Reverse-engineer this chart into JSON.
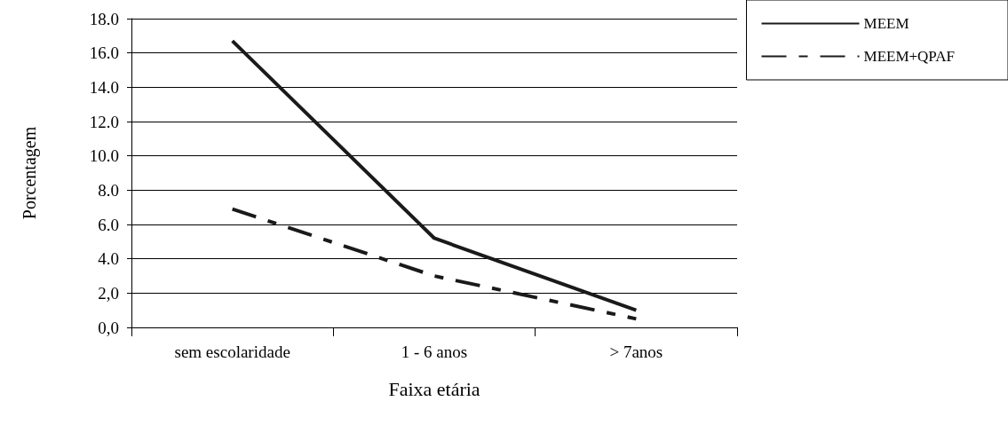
{
  "chart_data": {
    "type": "line",
    "xlabel": "Faixa etária",
    "ylabel": "Porcentagem",
    "categories": [
      "sem escolaridade",
      "1 - 6 anos",
      "> 7anos"
    ],
    "series": [
      {
        "name": "MEEM",
        "color": "#1a1a1a",
        "values": [
          16.7,
          5.2,
          1.0
        ],
        "line_style": "solid"
      },
      {
        "name": "MEEM+QPAF",
        "color": "#1a1a1a",
        "values": [
          6.9,
          3.0,
          0.5
        ],
        "line_style": "dashed"
      }
    ],
    "ylim": [
      0,
      18
    ],
    "yticks": [
      {
        "value": 0,
        "label": "0,0"
      },
      {
        "value": 2,
        "label": "2,0"
      },
      {
        "value": 4,
        "label": "4.0"
      },
      {
        "value": 6,
        "label": "6.0"
      },
      {
        "value": 8,
        "label": "8.0"
      },
      {
        "value": 10,
        "label": "10.0"
      },
      {
        "value": 12,
        "label": "12.0"
      },
      {
        "value": 14,
        "label": "14.0"
      },
      {
        "value": 16,
        "label": "16.0"
      },
      {
        "value": 18,
        "label": "18.0"
      }
    ],
    "grid": "y",
    "legend": "top right",
    "marker": "none"
  }
}
